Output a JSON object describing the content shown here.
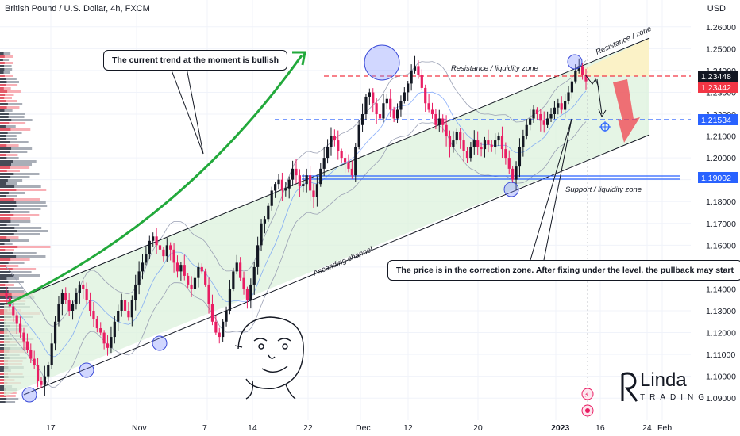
{
  "header": {
    "title": "British Pound / U.S. Dollar, 4h, FXCM",
    "currency": "USD"
  },
  "annotations": {
    "trend_note": "The current trend at the moment is bullish",
    "correction_note": "The price is in the correction zone. After fixing under the level, the pullback may start",
    "resistance_liquidity": "Resistance / liquidity zone",
    "resistance_zone": "Resistance / zone",
    "support_liquidity": "Support / liquidity zone",
    "ascending_channel": "Ascending channel"
  },
  "price_labels": {
    "current": "1.23448",
    "secondary": "1.23442",
    "mid_level": "1.21534",
    "support_level": "1.19002"
  },
  "logo": {
    "line1": "Linda",
    "line2": "TRADING"
  },
  "colors": {
    "up": "#089981",
    "down": "#f23645",
    "candle_up": "#131722",
    "candle_down": "#e91e63",
    "channel_fill": "#d7f0d7",
    "blue_line": "#2962ff",
    "red_line": "#f23645",
    "trend_arrow": "#22a93b"
  },
  "chart_data": {
    "type": "candlestick",
    "symbol": "GBPUSD",
    "timeframe": "4h",
    "ylim": [
      1.085,
      1.265
    ],
    "y_ticks": [
      "1.26000",
      "1.25000",
      "1.24000",
      "1.23000",
      "1.22000",
      "1.21000",
      "1.20000",
      "1.19000",
      "1.18000",
      "1.17000",
      "1.16000",
      "1.15000",
      "1.14000",
      "1.13000",
      "1.12000",
      "1.11000",
      "1.10000",
      "1.09000"
    ],
    "x_ticks": [
      "17",
      "Nov",
      "7",
      "14",
      "22",
      "Dec",
      "12",
      "20",
      "2023",
      "16",
      "24",
      "Feb"
    ],
    "levels": [
      {
        "name": "Resistance / liquidity zone",
        "value": 1.2344
      },
      {
        "name": "mid level",
        "value": 1.21534
      },
      {
        "name": "Support / liquidity zone",
        "value": 1.19002
      }
    ],
    "close_series": [
      1.136,
      1.132,
      1.128,
      1.124,
      1.12,
      1.116,
      1.112,
      1.108,
      1.105,
      1.098,
      1.096,
      1.1,
      1.105,
      1.115,
      1.125,
      1.133,
      1.138,
      1.135,
      1.13,
      1.133,
      1.138,
      1.142,
      1.14,
      1.135,
      1.13,
      1.126,
      1.122,
      1.12,
      1.115,
      1.113,
      1.118,
      1.125,
      1.13,
      1.135,
      1.13,
      1.127,
      1.135,
      1.142,
      1.148,
      1.152,
      1.156,
      1.162,
      1.164,
      1.16,
      1.158,
      1.155,
      1.16,
      1.158,
      1.152,
      1.148,
      1.151,
      1.146,
      1.142,
      1.14,
      1.145,
      1.15,
      1.148,
      1.142,
      1.133,
      1.125,
      1.12,
      1.118,
      1.125,
      1.13,
      1.14,
      1.148,
      1.152,
      1.145,
      1.14,
      1.135,
      1.142,
      1.15,
      1.16,
      1.17,
      1.172,
      1.178,
      1.185,
      1.188,
      1.19,
      1.185,
      1.186,
      1.19,
      1.195,
      1.192,
      1.187,
      1.188,
      1.192,
      1.185,
      1.182,
      1.188,
      1.195,
      1.2,
      1.205,
      1.21,
      1.208,
      1.203,
      1.2,
      1.198,
      1.195,
      1.192,
      1.205,
      1.215,
      1.22,
      1.228,
      1.23,
      1.225,
      1.22,
      1.218,
      1.225,
      1.227,
      1.222,
      1.218,
      1.222,
      1.226,
      1.23,
      1.234,
      1.24,
      1.242,
      1.238,
      1.232,
      1.225,
      1.222,
      1.22,
      1.215,
      1.218,
      1.215,
      1.21,
      1.205,
      1.208,
      1.212,
      1.208,
      1.203,
      1.2,
      1.205,
      1.208,
      1.205,
      1.204,
      1.208,
      1.206,
      1.205,
      1.208,
      1.21,
      1.204,
      1.2,
      1.195,
      1.19,
      1.196,
      1.205,
      1.21,
      1.215,
      1.218,
      1.222,
      1.22,
      1.217,
      1.215,
      1.218,
      1.22,
      1.223,
      1.225,
      1.222,
      1.226,
      1.23,
      1.235,
      1.24,
      1.242,
      1.238,
      1.235
    ]
  }
}
